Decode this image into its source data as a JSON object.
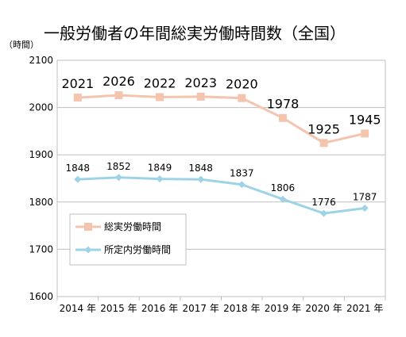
{
  "chart_data": {
    "type": "line",
    "title": "一般労働者の年間総実労働時間数（全国）",
    "ylabel": "（時間）",
    "xlabel": "",
    "categories": [
      "2014 年",
      "2015 年",
      "2016 年",
      "2017 年",
      "2018 年",
      "2019 年",
      "2020 年",
      "2021 年"
    ],
    "ylim": [
      1600,
      2100
    ],
    "yticks": [
      "1600",
      "1700",
      "1800",
      "1900",
      "2000",
      "2100"
    ],
    "grid": true,
    "legend_position": "left-lower",
    "series": [
      {
        "name": "総実労働時間",
        "values": [
          2021,
          2026,
          2022,
          2023,
          2020,
          1978,
          1925,
          1945
        ],
        "labels": [
          "2021",
          "2026",
          "2022",
          "2023",
          "2020",
          "1978",
          "1925",
          "1945"
        ],
        "color": "#F4C4AE",
        "marker": "square"
      },
      {
        "name": "所定内労働時間",
        "values": [
          1848,
          1852,
          1849,
          1848,
          1837,
          1806,
          1776,
          1787
        ],
        "labels": [
          "1848",
          "1852",
          "1849",
          "1848",
          "1837",
          "1806",
          "1776",
          "1787"
        ],
        "color": "#9DD3E6",
        "marker": "diamond"
      }
    ]
  }
}
